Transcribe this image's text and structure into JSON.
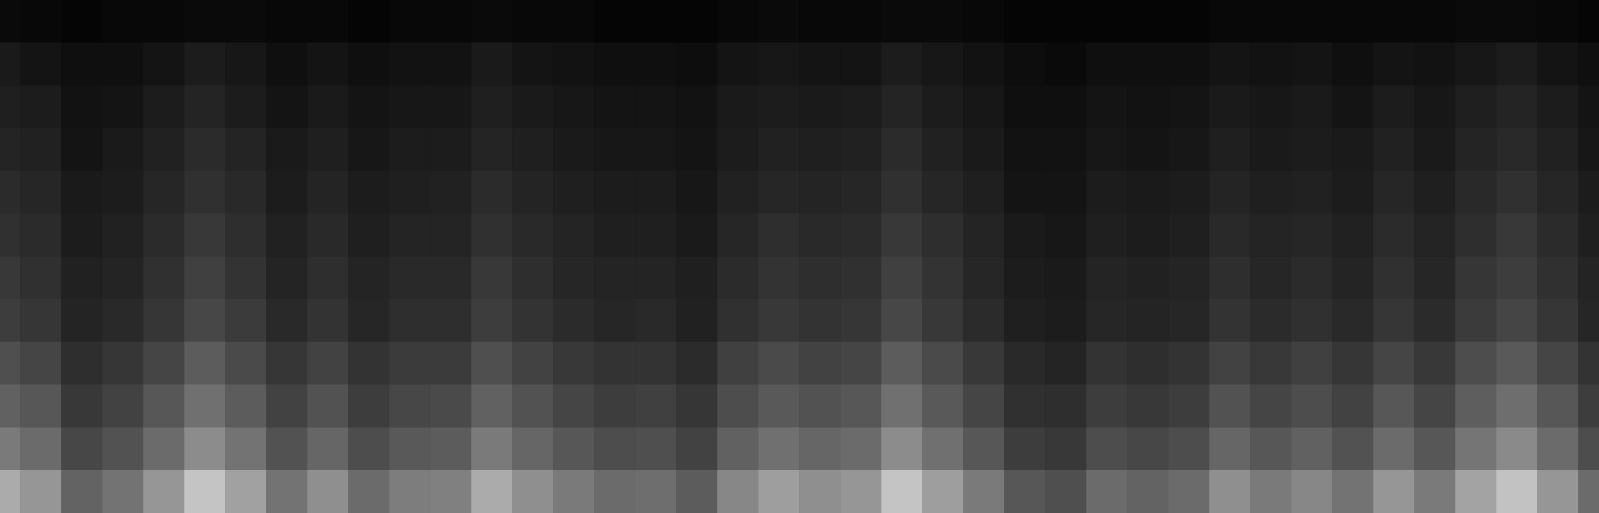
{
  "chart_data": {
    "type": "heatmap",
    "grid": false,
    "tick_labels": false,
    "color": "#ffffff",
    "zlim": [
      0,
      100
    ],
    "cells": [
      [
        67,
        59,
        39,
        45,
        59,
        77,
        63,
        45,
        56,
        42,
        49,
        50,
        67,
        56,
        48,
        42,
        43,
        36,
        53,
        62,
        56,
        59,
        77,
        62,
        48,
        34,
        31,
        42,
        39,
        42,
        56,
        48,
        53,
        45,
        59,
        48,
        64,
        76,
        59,
        42
      ],
      [
        48,
        42,
        28,
        32,
        42,
        55,
        45,
        32,
        40,
        30,
        35,
        36,
        48,
        40,
        34,
        30,
        31,
        26,
        38,
        44,
        40,
        42,
        55,
        44,
        34,
        24,
        22,
        30,
        28,
        30,
        40,
        34,
        38,
        32,
        42,
        34,
        46,
        54,
        42,
        30
      ],
      [
        38,
        34,
        22,
        26,
        34,
        44,
        36,
        26,
        32,
        24,
        28,
        29,
        38,
        32,
        27,
        24,
        25,
        21,
        30,
        35,
        32,
        34,
        44,
        35,
        27,
        19,
        18,
        24,
        22,
        24,
        32,
        27,
        30,
        26,
        34,
        27,
        37,
        43,
        34,
        24
      ],
      [
        31,
        27,
        18,
        21,
        27,
        36,
        29,
        21,
        26,
        20,
        23,
        23,
        31,
        26,
        22,
        20,
        20,
        17,
        25,
        29,
        26,
        27,
        36,
        29,
        22,
        16,
        14,
        20,
        18,
        20,
        26,
        22,
        25,
        21,
        27,
        22,
        30,
        35,
        27,
        20
      ],
      [
        24,
        21,
        14,
        16,
        21,
        28,
        23,
        16,
        20,
        15,
        18,
        18,
        24,
        20,
        17,
        15,
        16,
        13,
        19,
        22,
        20,
        21,
        28,
        22,
        17,
        12,
        11,
        15,
        14,
        15,
        20,
        17,
        19,
        16,
        21,
        17,
        23,
        27,
        21,
        15
      ],
      [
        22,
        19,
        13,
        14,
        19,
        25,
        20,
        14,
        18,
        14,
        16,
        16,
        22,
        18,
        15,
        14,
        14,
        12,
        17,
        20,
        18,
        19,
        25,
        20,
        15,
        11,
        10,
        14,
        13,
        14,
        18,
        15,
        17,
        14,
        19,
        15,
        21,
        24,
        19,
        14
      ],
      [
        19,
        17,
        11,
        13,
        17,
        22,
        18,
        13,
        16,
        12,
        14,
        14,
        19,
        16,
        14,
        12,
        12,
        10,
        15,
        18,
        16,
        17,
        22,
        18,
        14,
        10,
        9,
        12,
        11,
        12,
        16,
        14,
        15,
        13,
        17,
        14,
        18,
        22,
        17,
        12
      ],
      [
        17,
        15,
        10,
        11,
        15,
        19,
        16,
        11,
        14,
        11,
        12,
        13,
        17,
        14,
        12,
        11,
        11,
        9,
        13,
        15,
        14,
        15,
        19,
        15,
        12,
        8,
        8,
        11,
        10,
        11,
        14,
        12,
        13,
        11,
        15,
        12,
        16,
        19,
        15,
        11
      ],
      [
        14,
        13,
        8,
        10,
        13,
        17,
        14,
        10,
        12,
        9,
        11,
        11,
        14,
        12,
        10,
        9,
        9,
        8,
        11,
        13,
        12,
        13,
        17,
        13,
        10,
        7,
        7,
        9,
        8,
        9,
        12,
        10,
        11,
        10,
        13,
        10,
        14,
        16,
        13,
        9
      ],
      [
        12,
        11,
        7,
        8,
        11,
        14,
        11,
        8,
        10,
        8,
        9,
        9,
        12,
        10,
        9,
        8,
        8,
        7,
        10,
        11,
        10,
        11,
        14,
        11,
        9,
        6,
        6,
        8,
        7,
        8,
        10,
        9,
        10,
        8,
        11,
        9,
        12,
        14,
        11,
        8
      ],
      [
        10,
        8,
        6,
        6,
        8,
        11,
        9,
        6,
        8,
        6,
        7,
        7,
        10,
        8,
        7,
        6,
        6,
        5,
        8,
        9,
        8,
        8,
        11,
        9,
        7,
        5,
        4,
        6,
        6,
        6,
        8,
        7,
        8,
        6,
        8,
        7,
        9,
        11,
        8,
        6
      ],
      [
        4,
        3,
        2,
        3,
        3,
        4,
        4,
        3,
        3,
        2,
        3,
        3,
        4,
        3,
        3,
        2,
        2,
        2,
        3,
        4,
        3,
        3,
        4,
        4,
        3,
        2,
        2,
        2,
        2,
        2,
        3,
        3,
        3,
        3,
        3,
        3,
        4,
        4,
        3,
        2
      ]
    ]
  }
}
